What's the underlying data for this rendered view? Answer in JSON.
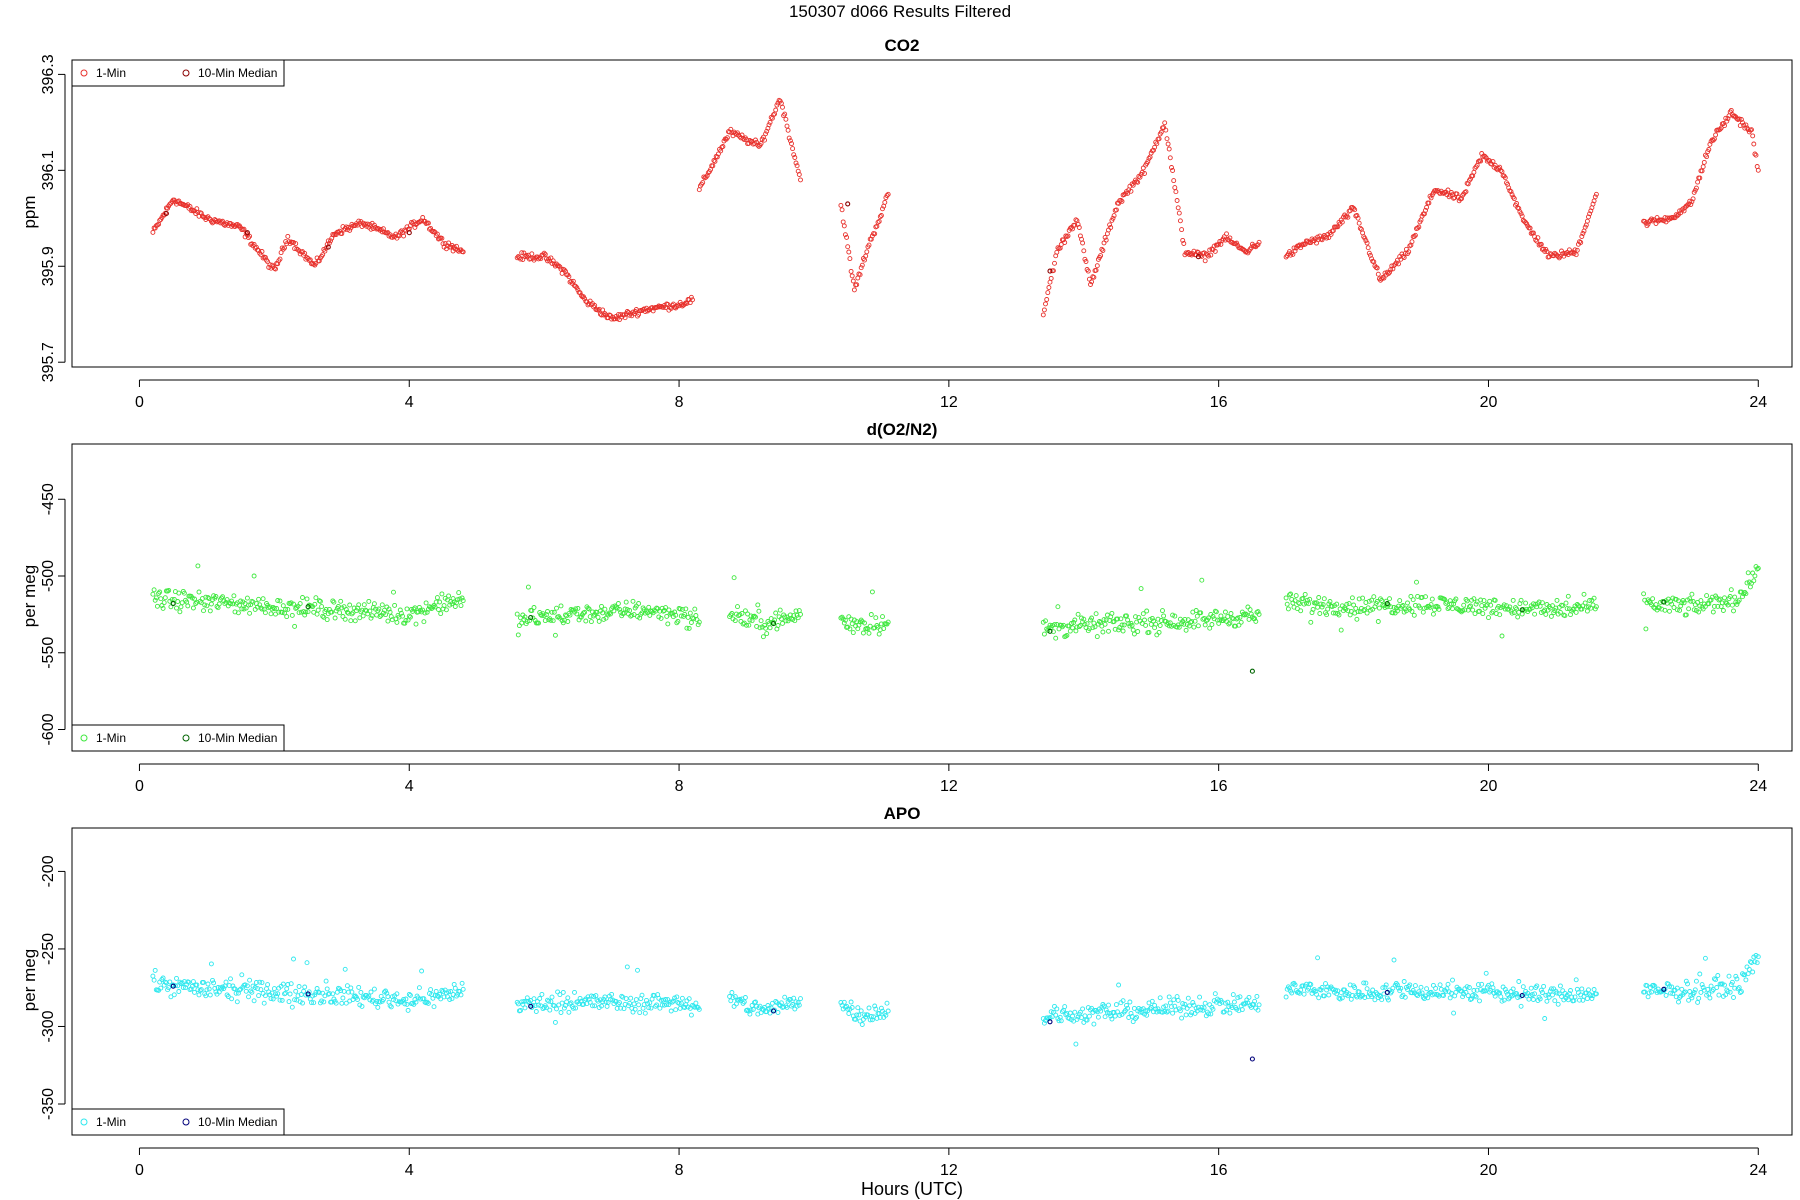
{
  "title": "150307   d066   Results Filtered",
  "xlabel": "Hours (UTC)",
  "colors": {
    "co2_one_min": "#e8312c",
    "co2_median": "#8b0000",
    "o2_one_min": "#3ee83e",
    "o2_median": "#006400",
    "apo_one_min": "#2ee8ee",
    "apo_median": "#00007a"
  },
  "chart_data": [
    {
      "type": "scatter",
      "title": "CO2",
      "ylabel": "ppm",
      "xlim": [
        -1,
        24.5
      ],
      "ylim": [
        395.69,
        396.33
      ],
      "xticks": [
        "0",
        "4",
        "8",
        "12",
        "16",
        "20",
        "24"
      ],
      "yticks": [
        "395.7",
        "395.9",
        "396.1",
        "396.3"
      ],
      "legend_position": "top-left",
      "legend": [
        "1-Min",
        "10-Min Median"
      ],
      "series": [
        {
          "name": "1-Min",
          "segments": [
            {
              "x": [
                0.2,
                0.5,
                1.0,
                1.5,
                2.0,
                2.2,
                2.6,
                2.9,
                3.3,
                3.8,
                4.2,
                4.5,
                4.8
              ],
              "y": [
                395.97,
                396.04,
                396.0,
                395.98,
                395.89,
                395.96,
                395.9,
                395.97,
                395.99,
                395.96,
                396.0,
                395.95,
                395.93
              ]
            },
            {
              "x": [
                5.6,
                6.0,
                6.3,
                6.6,
                7.0,
                7.5,
                8.0,
                8.2
              ],
              "y": [
                395.92,
                395.92,
                395.89,
                395.83,
                395.79,
                395.81,
                395.82,
                395.83
              ]
            },
            {
              "x": [
                8.3,
                8.75,
                9.2,
                9.5,
                9.8
              ],
              "y": [
                396.06,
                396.18,
                396.15,
                396.25,
                396.08
              ]
            },
            {
              "x": [
                10.4,
                10.6,
                10.8,
                11.0,
                11.1
              ],
              "y": [
                396.03,
                395.85,
                395.94,
                396.01,
                396.05
              ]
            },
            {
              "x": [
                13.4,
                13.6,
                13.9,
                14.1,
                14.5,
                14.9,
                15.2,
                15.5,
                15.8,
                16.1,
                16.4,
                16.6
              ],
              "y": [
                395.8,
                395.93,
                396.0,
                395.86,
                396.03,
                396.1,
                396.2,
                395.93,
                395.92,
                395.96,
                395.93,
                395.95
              ]
            },
            {
              "x": [
                17.0,
                17.3,
                17.6,
                18.0,
                18.4,
                18.8,
                19.2,
                19.6,
                19.9,
                20.2,
                20.5,
                20.9,
                21.3,
                21.6
              ],
              "y": [
                395.92,
                395.95,
                395.96,
                396.02,
                395.87,
                395.93,
                396.06,
                396.04,
                396.13,
                396.1,
                396.0,
                395.92,
                395.93,
                396.05
              ]
            },
            {
              "x": [
                22.3,
                22.7,
                23.0,
                23.3,
                23.6,
                23.9,
                24.0
              ],
              "y": [
                395.99,
                396.0,
                396.03,
                396.16,
                396.22,
                396.18,
                396.1
              ]
            }
          ]
        },
        {
          "name": "10-Min Median",
          "segments": [
            {
              "x": [
                0.4,
                1.6,
                2.8,
                4.0,
                10.5,
                13.5,
                15.7
              ],
              "y": [
                396.01,
                395.97,
                395.94,
                395.97,
                396.03,
                395.89,
                395.92
              ]
            }
          ]
        }
      ]
    },
    {
      "type": "scatter",
      "title": "d(O2/N2)",
      "ylabel": "per meg",
      "xlim": [
        -1,
        24.5
      ],
      "ylim": [
        -614,
        -414
      ],
      "xticks": [
        "0",
        "4",
        "8",
        "12",
        "16",
        "20",
        "24"
      ],
      "yticks": [
        "-450",
        "-500",
        "-550",
        "-600"
      ],
      "legend_position": "bottom-left",
      "legend": [
        "1-Min",
        "10-Min Median"
      ],
      "series": [
        {
          "name": "1-Min",
          "segments": [
            {
              "x": [
                0.2,
                1.0,
                2.0,
                3.0,
                4.0,
                4.5,
                4.8
              ],
              "y": [
                -515,
                -517,
                -520,
                -522,
                -525,
                -518,
                -516
              ]
            },
            {
              "x": [
                5.6,
                6.5,
                7.5,
                8.0,
                8.3
              ],
              "y": [
                -528,
                -525,
                -522,
                -525,
                -530
              ]
            },
            {
              "x": [
                8.75,
                9.3,
                9.8
              ],
              "y": [
                -524,
                -532,
                -525
              ]
            },
            {
              "x": [
                10.4,
                10.7,
                11.1
              ],
              "y": [
                -528,
                -532,
                -530
              ]
            },
            {
              "x": [
                13.4,
                14.0,
                15.0,
                16.0,
                16.6
              ],
              "y": [
                -535,
                -532,
                -530,
                -528,
                -525
              ]
            },
            {
              "x": [
                17.0,
                18.0,
                19.0,
                20.0,
                21.0,
                21.6
              ],
              "y": [
                -518,
                -520,
                -518,
                -520,
                -522,
                -520
              ]
            },
            {
              "x": [
                22.3,
                23.0,
                23.7,
                24.0
              ],
              "y": [
                -518,
                -520,
                -515,
                -495
              ]
            }
          ]
        },
        {
          "name": "10-Min Median",
          "segments": [
            {
              "x": [
                0.5,
                2.5,
                5.8,
                9.4,
                13.5,
                16.5,
                18.5,
                20.5,
                22.6
              ],
              "y": [
                -518,
                -520,
                -527,
                -531,
                -536,
                -562,
                -518,
                -522,
                -517
              ]
            }
          ]
        }
      ]
    },
    {
      "type": "scatter",
      "title": "APO",
      "ylabel": "per meg",
      "xlim": [
        -1,
        24.5
      ],
      "ylim": [
        -370,
        -172
      ],
      "xticks": [
        "0",
        "4",
        "8",
        "12",
        "16",
        "20",
        "24"
      ],
      "yticks": [
        "-200",
        "-250",
        "-300",
        "-350"
      ],
      "legend_position": "bottom-left",
      "legend": [
        "1-Min",
        "10-Min Median"
      ],
      "series": [
        {
          "name": "1-Min",
          "segments": [
            {
              "x": [
                0.2,
                1.0,
                2.0,
                3.0,
                4.0,
                4.5,
                4.8
              ],
              "y": [
                -272,
                -276,
                -278,
                -280,
                -283,
                -280,
                -276
              ]
            },
            {
              "x": [
                5.6,
                6.5,
                7.5,
                8.0,
                8.3
              ],
              "y": [
                -286,
                -284,
                -285,
                -284,
                -289
              ]
            },
            {
              "x": [
                8.75,
                9.3,
                9.8
              ],
              "y": [
                -283,
                -290,
                -282
              ]
            },
            {
              "x": [
                10.4,
                10.7,
                11.1
              ],
              "y": [
                -286,
                -292,
                -290
              ]
            },
            {
              "x": [
                13.4,
                14.0,
                15.0,
                16.0,
                16.6
              ],
              "y": [
                -294,
                -292,
                -289,
                -286,
                -286
              ]
            },
            {
              "x": [
                17.0,
                18.0,
                19.0,
                20.0,
                21.0,
                21.6
              ],
              "y": [
                -276,
                -278,
                -277,
                -278,
                -280,
                -279
              ]
            },
            {
              "x": [
                22.3,
                23.0,
                23.7,
                24.0
              ],
              "y": [
                -278,
                -277,
                -274,
                -255
              ]
            }
          ]
        },
        {
          "name": "10-Min Median",
          "segments": [
            {
              "x": [
                0.5,
                2.5,
                5.8,
                9.4,
                13.5,
                16.5,
                18.5,
                20.5,
                22.6
              ],
              "y": [
                -274,
                -279,
                -287,
                -290,
                -297,
                -321,
                -278,
                -280,
                -276
              ]
            }
          ]
        }
      ]
    }
  ]
}
